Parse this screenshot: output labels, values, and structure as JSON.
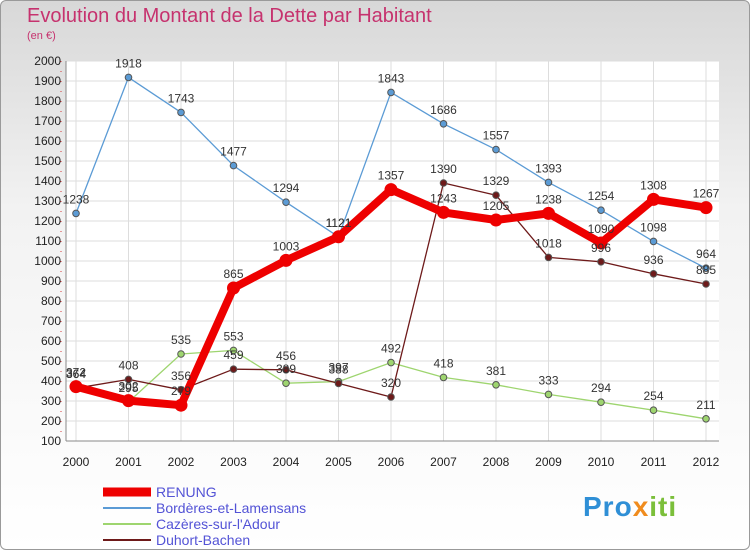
{
  "title": "Evolution du Montant de la Dette par Habitant",
  "subtitle": "(en €)",
  "logo": {
    "part1": "Pro",
    "part2": "x",
    "part3": "iti"
  },
  "chart_data": {
    "type": "line",
    "x": [
      "2000",
      "2001",
      "2002",
      "2003",
      "2004",
      "2005",
      "2006",
      "2007",
      "2008",
      "2009",
      "2010",
      "2011",
      "2012"
    ],
    "ylim": [
      100,
      2000
    ],
    "yticks": [
      100,
      200,
      300,
      400,
      500,
      600,
      700,
      800,
      900,
      1000,
      1100,
      1200,
      1300,
      1400,
      1500,
      1600,
      1700,
      1800,
      1900,
      2000
    ],
    "grid": true,
    "legend_position": "bottom-left",
    "series": [
      {
        "name": "Bordères-et-Lamensans",
        "color": "#5b9bd5",
        "values": [
          1238,
          1918,
          1743,
          1477,
          1294,
          1121,
          1843,
          1686,
          1557,
          1393,
          1254,
          1098,
          964
        ]
      },
      {
        "name": "Cazères-sur-l'Adour",
        "color": "#9ed56f",
        "values": [
          364,
          295,
          535,
          553,
          389,
          397,
          492,
          418,
          381,
          333,
          294,
          254,
          211
        ]
      },
      {
        "name": "Duhort-Bachen",
        "color": "#6e1a1a",
        "values": [
          364,
          408,
          356,
          459,
          456,
          388,
          320,
          1390,
          1329,
          1018,
          996,
          936,
          885
        ]
      },
      {
        "name": "RENUNG",
        "color": "#ee0000",
        "values": [
          372,
          302,
          279,
          865,
          1003,
          1121,
          1357,
          1243,
          1205,
          1238,
          1090,
          1308,
          1267
        ]
      }
    ],
    "legend_order": [
      "RENUNG",
      "Bordères-et-Lamensans",
      "Cazères-sur-l'Adour",
      "Duhort-Bachen"
    ]
  }
}
